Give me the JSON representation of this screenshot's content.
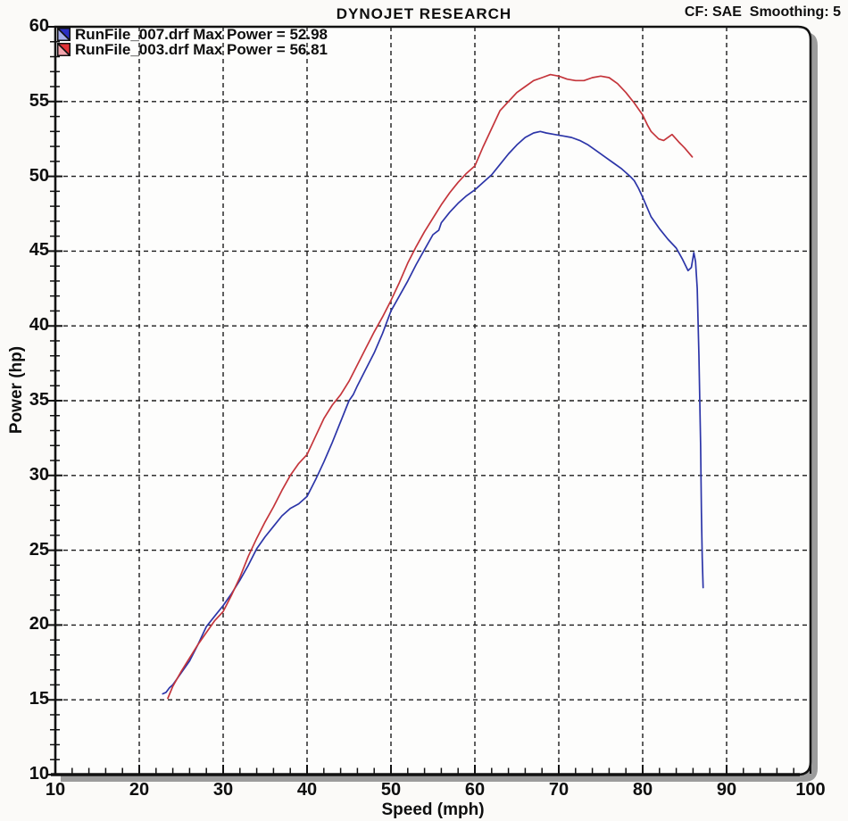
{
  "header": {
    "title": "DYNOJET RESEARCH",
    "correction": "CF: SAE  Smoothing: 5"
  },
  "legend": [
    {
      "label": "RunFile_007.drf Max Power = 52.98",
      "marker_dark": "#2b2fc4",
      "marker_light": "#a6aeec"
    },
    {
      "label": "RunFile_003.drf Max Power = 56.81",
      "marker_dark": "#e23338",
      "marker_light": "#f3a6ae"
    }
  ],
  "axes": {
    "x": {
      "label": "Speed (mph)",
      "min": 10,
      "max": 100,
      "major_step": 10,
      "minor_step": 2,
      "tick_labels": [
        "10",
        "20",
        "30",
        "40",
        "50",
        "60",
        "70",
        "80",
        "90",
        "100"
      ]
    },
    "y": {
      "label": "Power (hp)",
      "min": 10,
      "max": 60,
      "major_step": 5,
      "minor_step": 1,
      "tick_labels": [
        "10",
        "15",
        "20",
        "25",
        "30",
        "35",
        "40",
        "45",
        "50",
        "55",
        "60"
      ]
    }
  },
  "chart_data": {
    "type": "line",
    "title": "DYNOJET RESEARCH",
    "xlabel": "Speed (mph)",
    "ylabel": "Power (hp)",
    "xlim": [
      10,
      100
    ],
    "ylim": [
      10,
      60
    ],
    "grid": "dashed, major gridlines every 10 mph / 5 hp",
    "legend_position": "top-left",
    "series": [
      {
        "name": "RunFile_007.drf",
        "max_power": 52.98,
        "color": "#2c35a8",
        "points": [
          [
            22.8,
            15.4
          ],
          [
            23.2,
            15.5
          ],
          [
            23.6,
            15.8
          ],
          [
            24,
            16.0
          ],
          [
            25,
            16.8
          ],
          [
            26,
            17.6
          ],
          [
            27,
            18.7
          ],
          [
            28,
            19.9
          ],
          [
            29,
            20.6
          ],
          [
            30,
            21.3
          ],
          [
            31,
            22.1
          ],
          [
            32,
            23.0
          ],
          [
            33,
            24.0
          ],
          [
            34,
            25.1
          ],
          [
            35,
            25.9
          ],
          [
            36,
            26.6
          ],
          [
            37,
            27.3
          ],
          [
            38,
            27.8
          ],
          [
            39,
            28.1
          ],
          [
            40,
            28.6
          ],
          [
            41,
            29.7
          ],
          [
            42,
            30.9
          ],
          [
            43,
            32.2
          ],
          [
            44,
            33.6
          ],
          [
            45,
            35.0
          ],
          [
            45.5,
            35.4
          ],
          [
            46,
            36.0
          ],
          [
            47,
            37.1
          ],
          [
            48,
            38.2
          ],
          [
            49,
            39.5
          ],
          [
            50,
            41.0
          ],
          [
            51,
            42.0
          ],
          [
            52,
            43.0
          ],
          [
            53,
            44.1
          ],
          [
            54,
            45.1
          ],
          [
            55,
            46.1
          ],
          [
            55.7,
            46.4
          ],
          [
            56,
            46.9
          ],
          [
            57,
            47.6
          ],
          [
            58,
            48.2
          ],
          [
            59,
            48.7
          ],
          [
            60,
            49.1
          ],
          [
            61,
            49.6
          ],
          [
            62,
            50.1
          ],
          [
            63,
            50.8
          ],
          [
            64,
            51.5
          ],
          [
            65,
            52.1
          ],
          [
            66,
            52.6
          ],
          [
            67,
            52.9
          ],
          [
            67.8,
            53.0
          ],
          [
            68.5,
            52.9
          ],
          [
            69.5,
            52.8
          ],
          [
            70.5,
            52.7
          ],
          [
            71.5,
            52.6
          ],
          [
            72.5,
            52.4
          ],
          [
            73.5,
            52.1
          ],
          [
            74.5,
            51.7
          ],
          [
            75.5,
            51.3
          ],
          [
            76.5,
            50.9
          ],
          [
            77.5,
            50.5
          ],
          [
            78.5,
            50.0
          ],
          [
            79,
            49.7
          ],
          [
            79.5,
            49.2
          ],
          [
            80,
            48.6
          ],
          [
            81,
            47.3
          ],
          [
            82,
            46.5
          ],
          [
            83,
            45.8
          ],
          [
            84,
            45.2
          ],
          [
            84.7,
            44.5
          ],
          [
            85.4,
            43.7
          ],
          [
            85.8,
            43.9
          ],
          [
            86.1,
            44.9
          ],
          [
            86.3,
            44.3
          ],
          [
            86.5,
            42.5
          ],
          [
            86.7,
            38.0
          ],
          [
            86.9,
            32.0
          ],
          [
            87.0,
            27.5
          ],
          [
            87.1,
            24.5
          ],
          [
            87.2,
            22.5
          ]
        ]
      },
      {
        "name": "RunFile_003.drf",
        "max_power": 56.81,
        "color": "#c4353b",
        "points": [
          [
            23.4,
            15.1
          ],
          [
            24,
            15.9
          ],
          [
            25,
            16.9
          ],
          [
            26,
            17.8
          ],
          [
            27,
            18.7
          ],
          [
            28,
            19.5
          ],
          [
            29,
            20.3
          ],
          [
            30,
            20.9
          ],
          [
            31,
            22.0
          ],
          [
            32,
            23.2
          ],
          [
            33,
            24.6
          ],
          [
            34,
            25.8
          ],
          [
            35,
            26.9
          ],
          [
            36,
            27.9
          ],
          [
            37,
            29.0
          ],
          [
            38,
            30.0
          ],
          [
            39,
            30.8
          ],
          [
            40,
            31.4
          ],
          [
            41,
            32.6
          ],
          [
            42,
            33.8
          ],
          [
            43,
            34.7
          ],
          [
            44,
            35.4
          ],
          [
            45,
            36.3
          ],
          [
            46,
            37.4
          ],
          [
            47,
            38.5
          ],
          [
            48,
            39.6
          ],
          [
            49,
            40.6
          ],
          [
            50,
            41.7
          ],
          [
            51,
            42.9
          ],
          [
            52,
            44.2
          ],
          [
            53,
            45.3
          ],
          [
            54,
            46.3
          ],
          [
            55,
            47.2
          ],
          [
            56,
            48.1
          ],
          [
            57,
            48.9
          ],
          [
            58,
            49.6
          ],
          [
            59,
            50.2
          ],
          [
            60,
            50.7
          ],
          [
            61,
            52.0
          ],
          [
            62,
            53.2
          ],
          [
            63,
            54.4
          ],
          [
            64,
            55.0
          ],
          [
            65,
            55.6
          ],
          [
            66,
            56.0
          ],
          [
            67,
            56.4
          ],
          [
            68,
            56.6
          ],
          [
            69,
            56.8
          ],
          [
            70,
            56.7
          ],
          [
            71,
            56.5
          ],
          [
            72,
            56.4
          ],
          [
            73,
            56.4
          ],
          [
            74,
            56.6
          ],
          [
            75,
            56.7
          ],
          [
            76,
            56.6
          ],
          [
            77,
            56.2
          ],
          [
            78,
            55.6
          ],
          [
            79,
            54.9
          ],
          [
            80,
            54.1
          ],
          [
            80.6,
            53.4
          ],
          [
            81,
            53.0
          ],
          [
            81.9,
            52.5
          ],
          [
            82.5,
            52.4
          ],
          [
            83.5,
            52.8
          ],
          [
            84.3,
            52.3
          ],
          [
            85,
            51.9
          ],
          [
            85.9,
            51.3
          ]
        ]
      }
    ]
  }
}
